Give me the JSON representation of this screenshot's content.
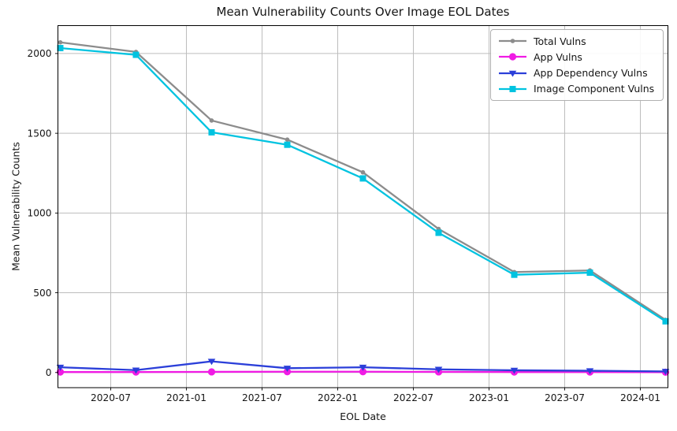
{
  "chart_data": {
    "type": "line",
    "title": "Mean Vulnerability Counts Over Image EOL Dates",
    "xlabel": "EOL Date",
    "ylabel": "Mean Vulnerability Counts",
    "x": [
      "2020-03",
      "2020-09",
      "2021-03",
      "2021-09",
      "2022-03",
      "2022-09",
      "2023-03",
      "2023-09",
      "2024-03"
    ],
    "xtick_labels": [
      "2020-07",
      "2021-01",
      "2021-07",
      "2022-01",
      "2022-07",
      "2023-01",
      "2023-07",
      "2024-01"
    ],
    "ytick_values": [
      0,
      500,
      1000,
      1500,
      2000
    ],
    "ytick_labels": [
      "0",
      "500",
      "1000",
      "1500",
      "2000"
    ],
    "ylim": [
      -95,
      2175
    ],
    "grid": true,
    "legend_position": "upper-right",
    "series": [
      {
        "name": "Total Vulns",
        "color": "#8c8c8c",
        "marker": "dot",
        "values": [
          2070,
          2010,
          1580,
          1460,
          1255,
          900,
          630,
          640,
          330
        ]
      },
      {
        "name": "App Vulns",
        "color": "#f01be4",
        "marker": "circle",
        "values": [
          3,
          3,
          4,
          5,
          5,
          4,
          3,
          3,
          2
        ]
      },
      {
        "name": "App Dependency Vulns",
        "color": "#2b3fd9",
        "marker": "triangle-down",
        "values": [
          33,
          15,
          70,
          27,
          33,
          20,
          14,
          11,
          7
        ]
      },
      {
        "name": "Image Component Vulns",
        "color": "#00c3e0",
        "marker": "square",
        "values": [
          2034,
          1992,
          1506,
          1428,
          1217,
          876,
          613,
          626,
          321
        ]
      }
    ],
    "style": {
      "grid_color": "#bdbdbd",
      "axis_color": "#000000",
      "text_color": "#151515",
      "background": "#ffffff"
    }
  }
}
